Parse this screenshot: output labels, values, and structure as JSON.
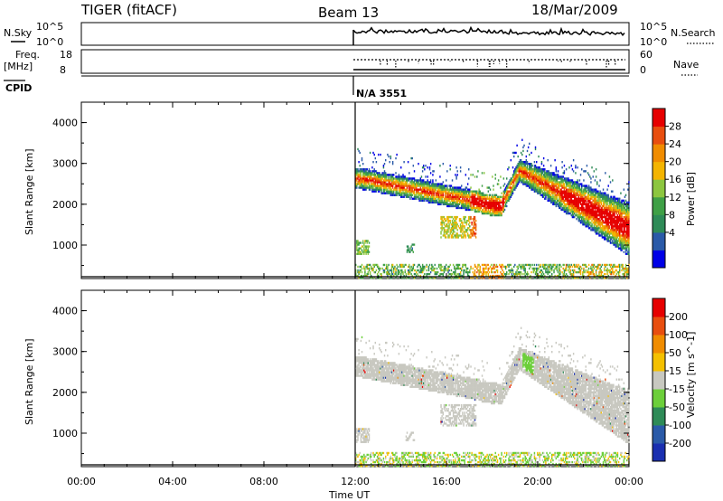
{
  "header": {
    "radar": "TIGER (fitACF)",
    "beam": "Beam 13",
    "date": "18/Mar/2009"
  },
  "strips": {
    "nsky_label": "N.Sky",
    "nsky_ticks": [
      "10^5",
      "10^0"
    ],
    "nsearch_label": "N.Search",
    "nsearch_ticks": [
      "10^5",
      "10^0"
    ],
    "freq_label": "Freq.",
    "freq_unit": "[MHz]",
    "freq_ticks": [
      "18",
      "8"
    ],
    "nave_label": "Nave",
    "nave_ticks": [
      "60",
      "0"
    ],
    "cpid_label": "CPID",
    "cpid_value": "N/A 3551"
  },
  "chart_data": [
    {
      "type": "heatmap",
      "ylabel": "Slant Range [km]",
      "xlabel": "Time UT",
      "ylim": [
        180,
        4500
      ],
      "yticks": [
        1000,
        2000,
        3000,
        4000
      ],
      "xticks": [
        "00:00",
        "04:00",
        "08:00",
        "12:00",
        "16:00",
        "20:00",
        "00:00"
      ],
      "colorbar": {
        "label": "Power [dB]",
        "ticks": [
          "28",
          "24",
          "20",
          "16",
          "12",
          "8",
          "4"
        ],
        "colors": [
          "#0000e6",
          "#2a5aa8",
          "#2e8b57",
          "#3fa046",
          "#8cc63f",
          "#f4b400",
          "#f08c00",
          "#e84e0f",
          "#e60000"
        ]
      },
      "data_start": "12:00",
      "data_end": "00:00"
    },
    {
      "type": "heatmap",
      "ylabel": "Slant Range [km]",
      "xlabel": "Time UT",
      "ylim": [
        180,
        4500
      ],
      "yticks": [
        1000,
        2000,
        3000,
        4000
      ],
      "xticks": [
        "00:00",
        "04:00",
        "08:00",
        "12:00",
        "16:00",
        "20:00",
        "00:00"
      ],
      "colorbar": {
        "label": "Velocity [m s^-1]",
        "ticks": [
          "200",
          "100",
          "50",
          "15",
          "-15",
          "-50",
          "-100",
          "-200"
        ],
        "colors": [
          "#1a2fb0",
          "#2a5aa8",
          "#2e8b57",
          "#6ccf3a",
          "#c8c8c0",
          "#f4c000",
          "#f08c00",
          "#e84e0f",
          "#e60000"
        ]
      },
      "data_start": "12:00",
      "data_end": "00:00"
    }
  ],
  "xaxis_title": "Time UT"
}
